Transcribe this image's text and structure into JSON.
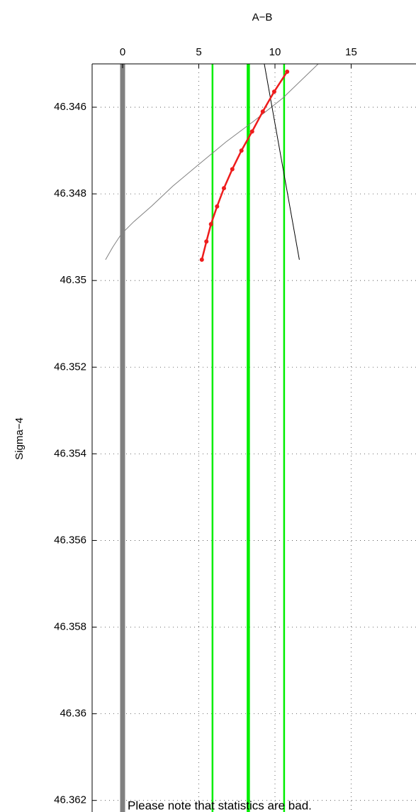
{
  "chart_data": {
    "type": "line",
    "title": "A−B",
    "y_label": "Sigma−4",
    "annotation": "Please note that statistics are bad.",
    "annotation_color": "#ff0000",
    "xlim": [
      -2,
      20
    ],
    "xticks": [
      0,
      5,
      10,
      15
    ],
    "x_axis_position": "top",
    "ylim": [
      46.345,
      46.3623
    ],
    "y_reversed": true,
    "yticks": [
      46.346,
      46.348,
      46.35,
      46.352,
      46.354,
      46.356,
      46.358,
      46.36,
      46.362
    ],
    "grid": true,
    "vlines": [
      {
        "x": 0,
        "color": "#808080",
        "linewidth": 7
      },
      {
        "x": 5.9,
        "color": "#00ee00",
        "linewidth": 2.5
      },
      {
        "x": 8.25,
        "color": "#00ee00",
        "linewidth": 4.5
      },
      {
        "x": 10.6,
        "color": "#00ee00",
        "linewidth": 2.5
      }
    ],
    "series": [
      {
        "color": "#808080",
        "linewidth": 1,
        "marker": false,
        "x": [
          -1.12,
          -0.65,
          -0.09,
          0.74,
          1.91,
          3.3,
          4.93,
          6.79,
          8.65,
          10.51,
          12.84
        ],
        "values": [
          46.34952,
          46.34923,
          46.34893,
          46.34864,
          46.34828,
          46.34782,
          46.34734,
          46.3468,
          46.34631,
          46.34579,
          46.345
        ]
      },
      {
        "color": "#000000",
        "linewidth": 1,
        "marker": false,
        "x": [
          9.3,
          11.6
        ],
        "values": [
          46.345,
          46.34952
        ]
      },
      {
        "color": "#ee1c1c",
        "linewidth": 2.5,
        "marker": true,
        "x": [
          5.2,
          5.5,
          5.8,
          6.2,
          6.65,
          7.2,
          7.8,
          8.5,
          9.2,
          9.95,
          10.8
        ],
        "values": [
          46.34952,
          46.3491,
          46.3487,
          46.34829,
          46.34787,
          46.34743,
          46.347,
          46.34656,
          46.3461,
          46.34564,
          46.34518
        ]
      }
    ]
  }
}
